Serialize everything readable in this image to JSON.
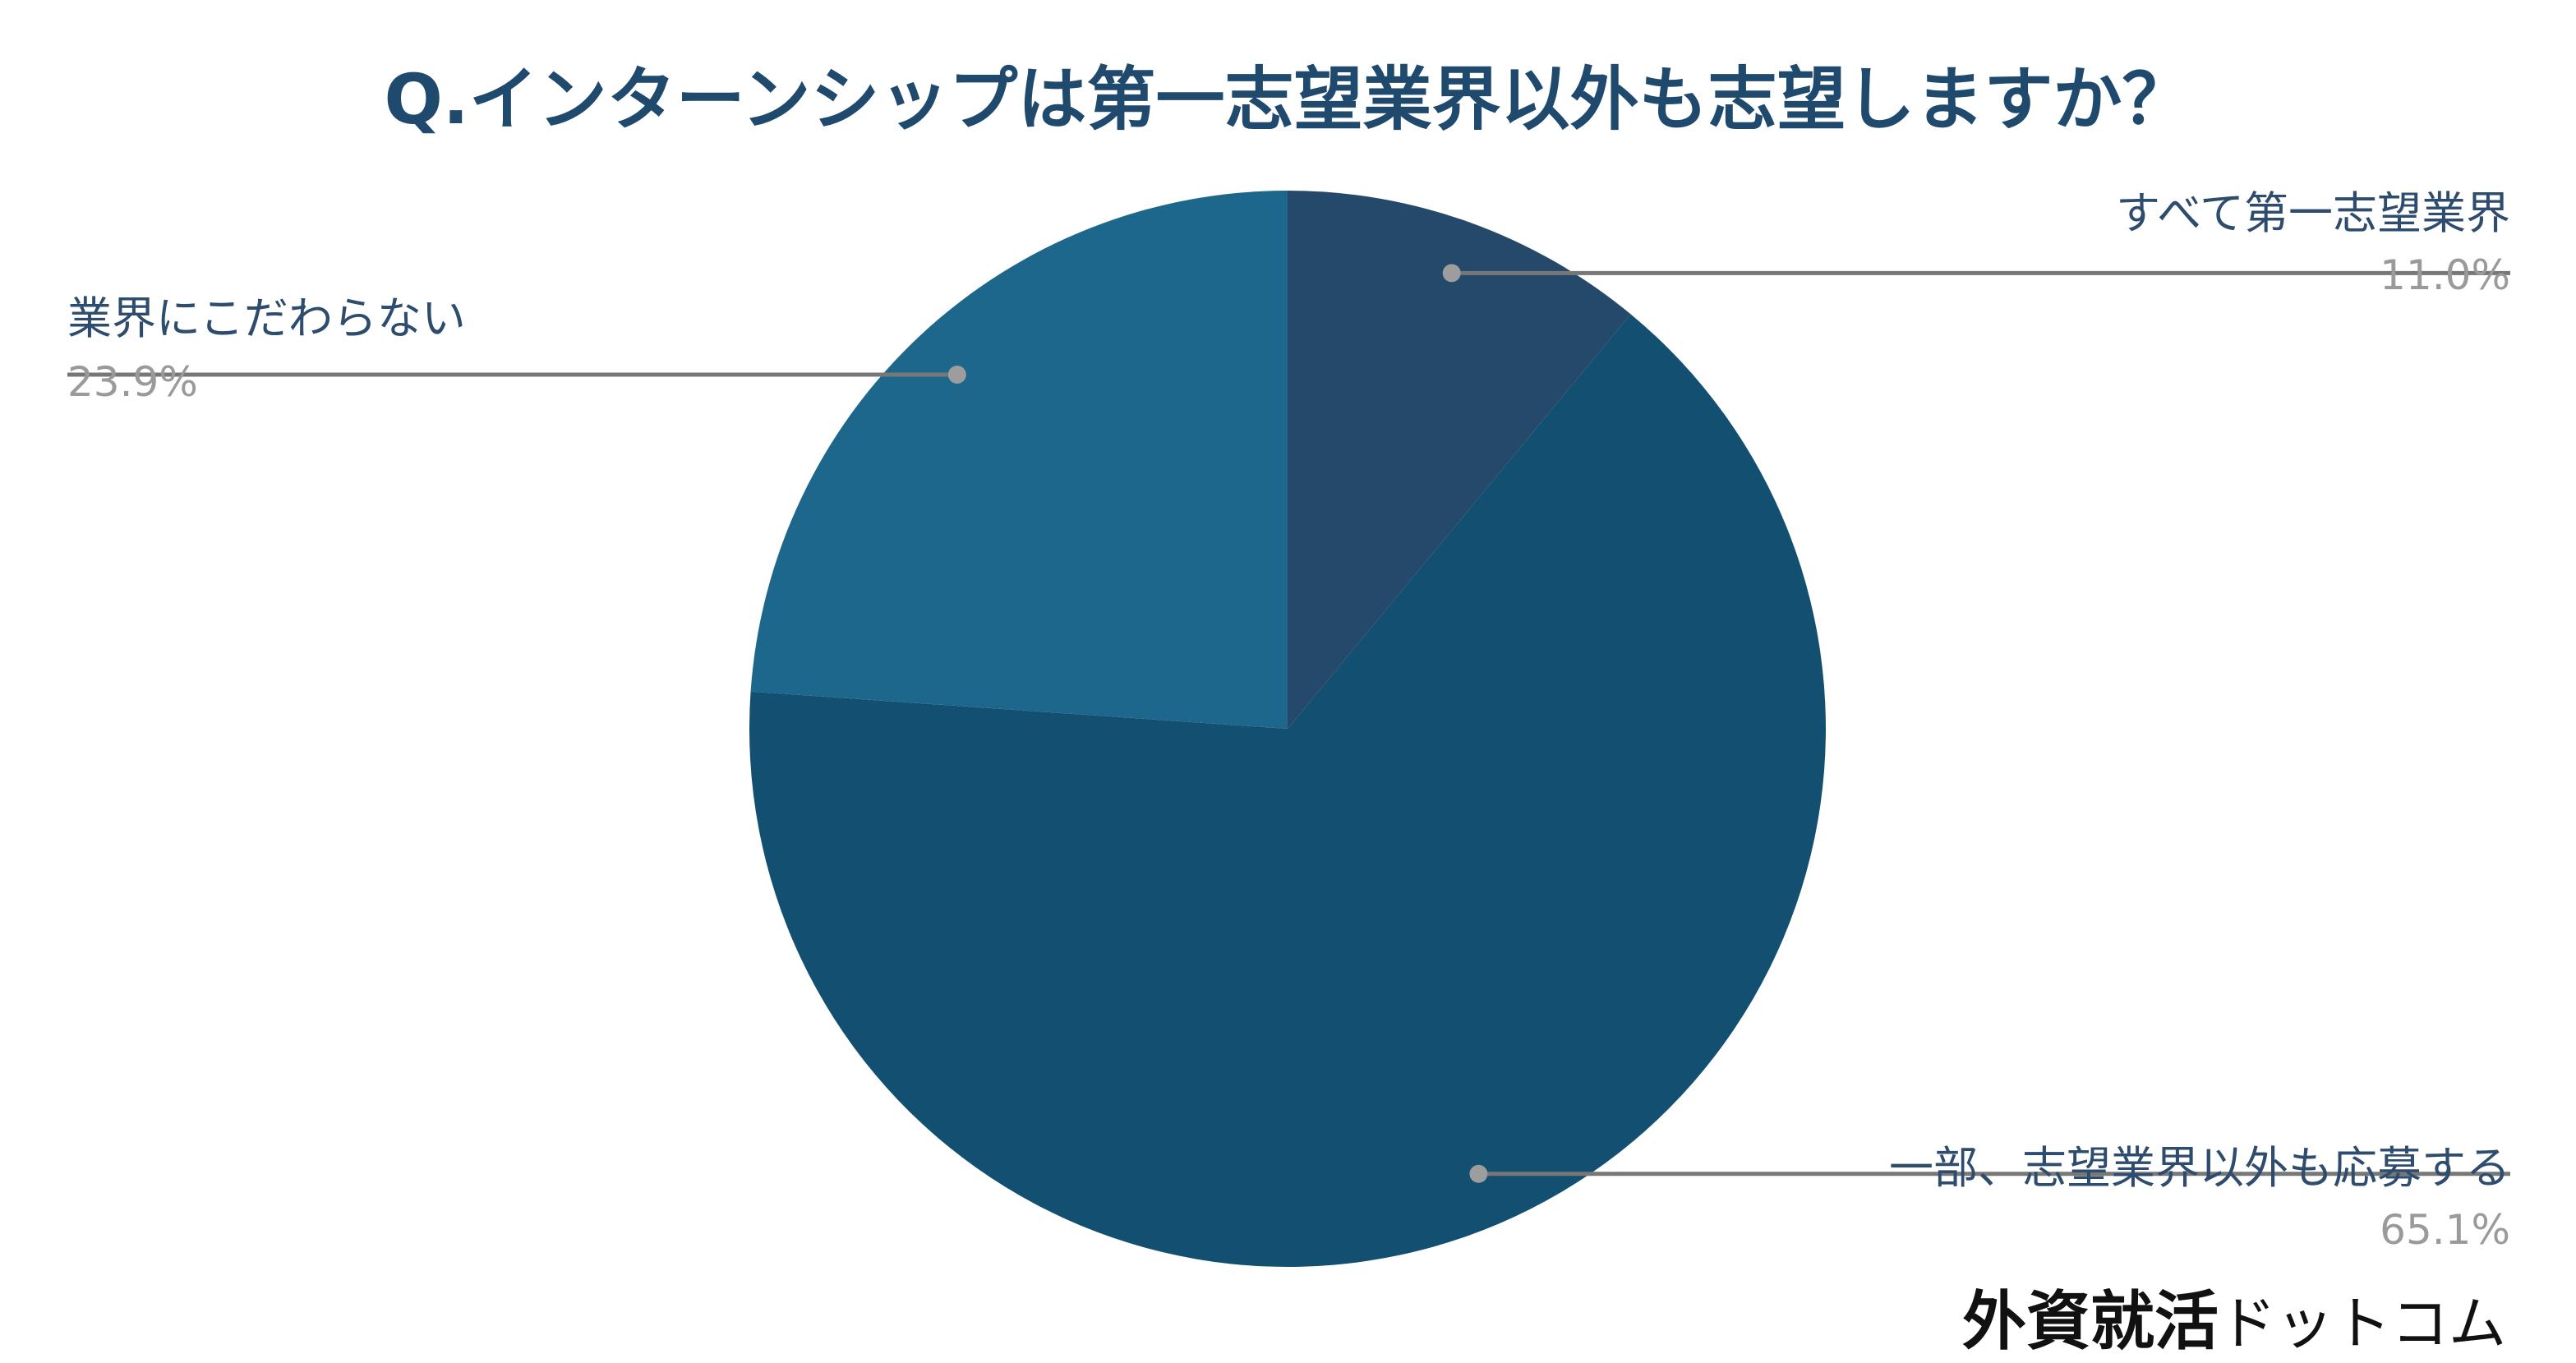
{
  "chart_data": {
    "type": "pie",
    "title": "Q.インターンシップは第一志望業界以外も志望しますか？",
    "slices": [
      {
        "label": "すべて第一志望業界",
        "value": 11.0,
        "display": "11.0%",
        "color": "#24496b"
      },
      {
        "label": "一部、志望業界以外も応募する",
        "value": 65.1,
        "display": "65.1%",
        "color": "#134f71"
      },
      {
        "label": "業界にこだわらない",
        "value": 23.9,
        "display": "23.9%",
        "color": "#1e678c"
      }
    ],
    "start_angle": "12 o'clock",
    "direction": "clockwise",
    "legend": "none",
    "label_style": "external leader lines"
  },
  "brand": {
    "kanji": "外資就活",
    "kana": "ドットコム"
  },
  "colors": {
    "title": "#1f4a6e",
    "label_text": "#2e4c6d",
    "value_text": "#9a9a9a",
    "leader_line": "#777777"
  }
}
